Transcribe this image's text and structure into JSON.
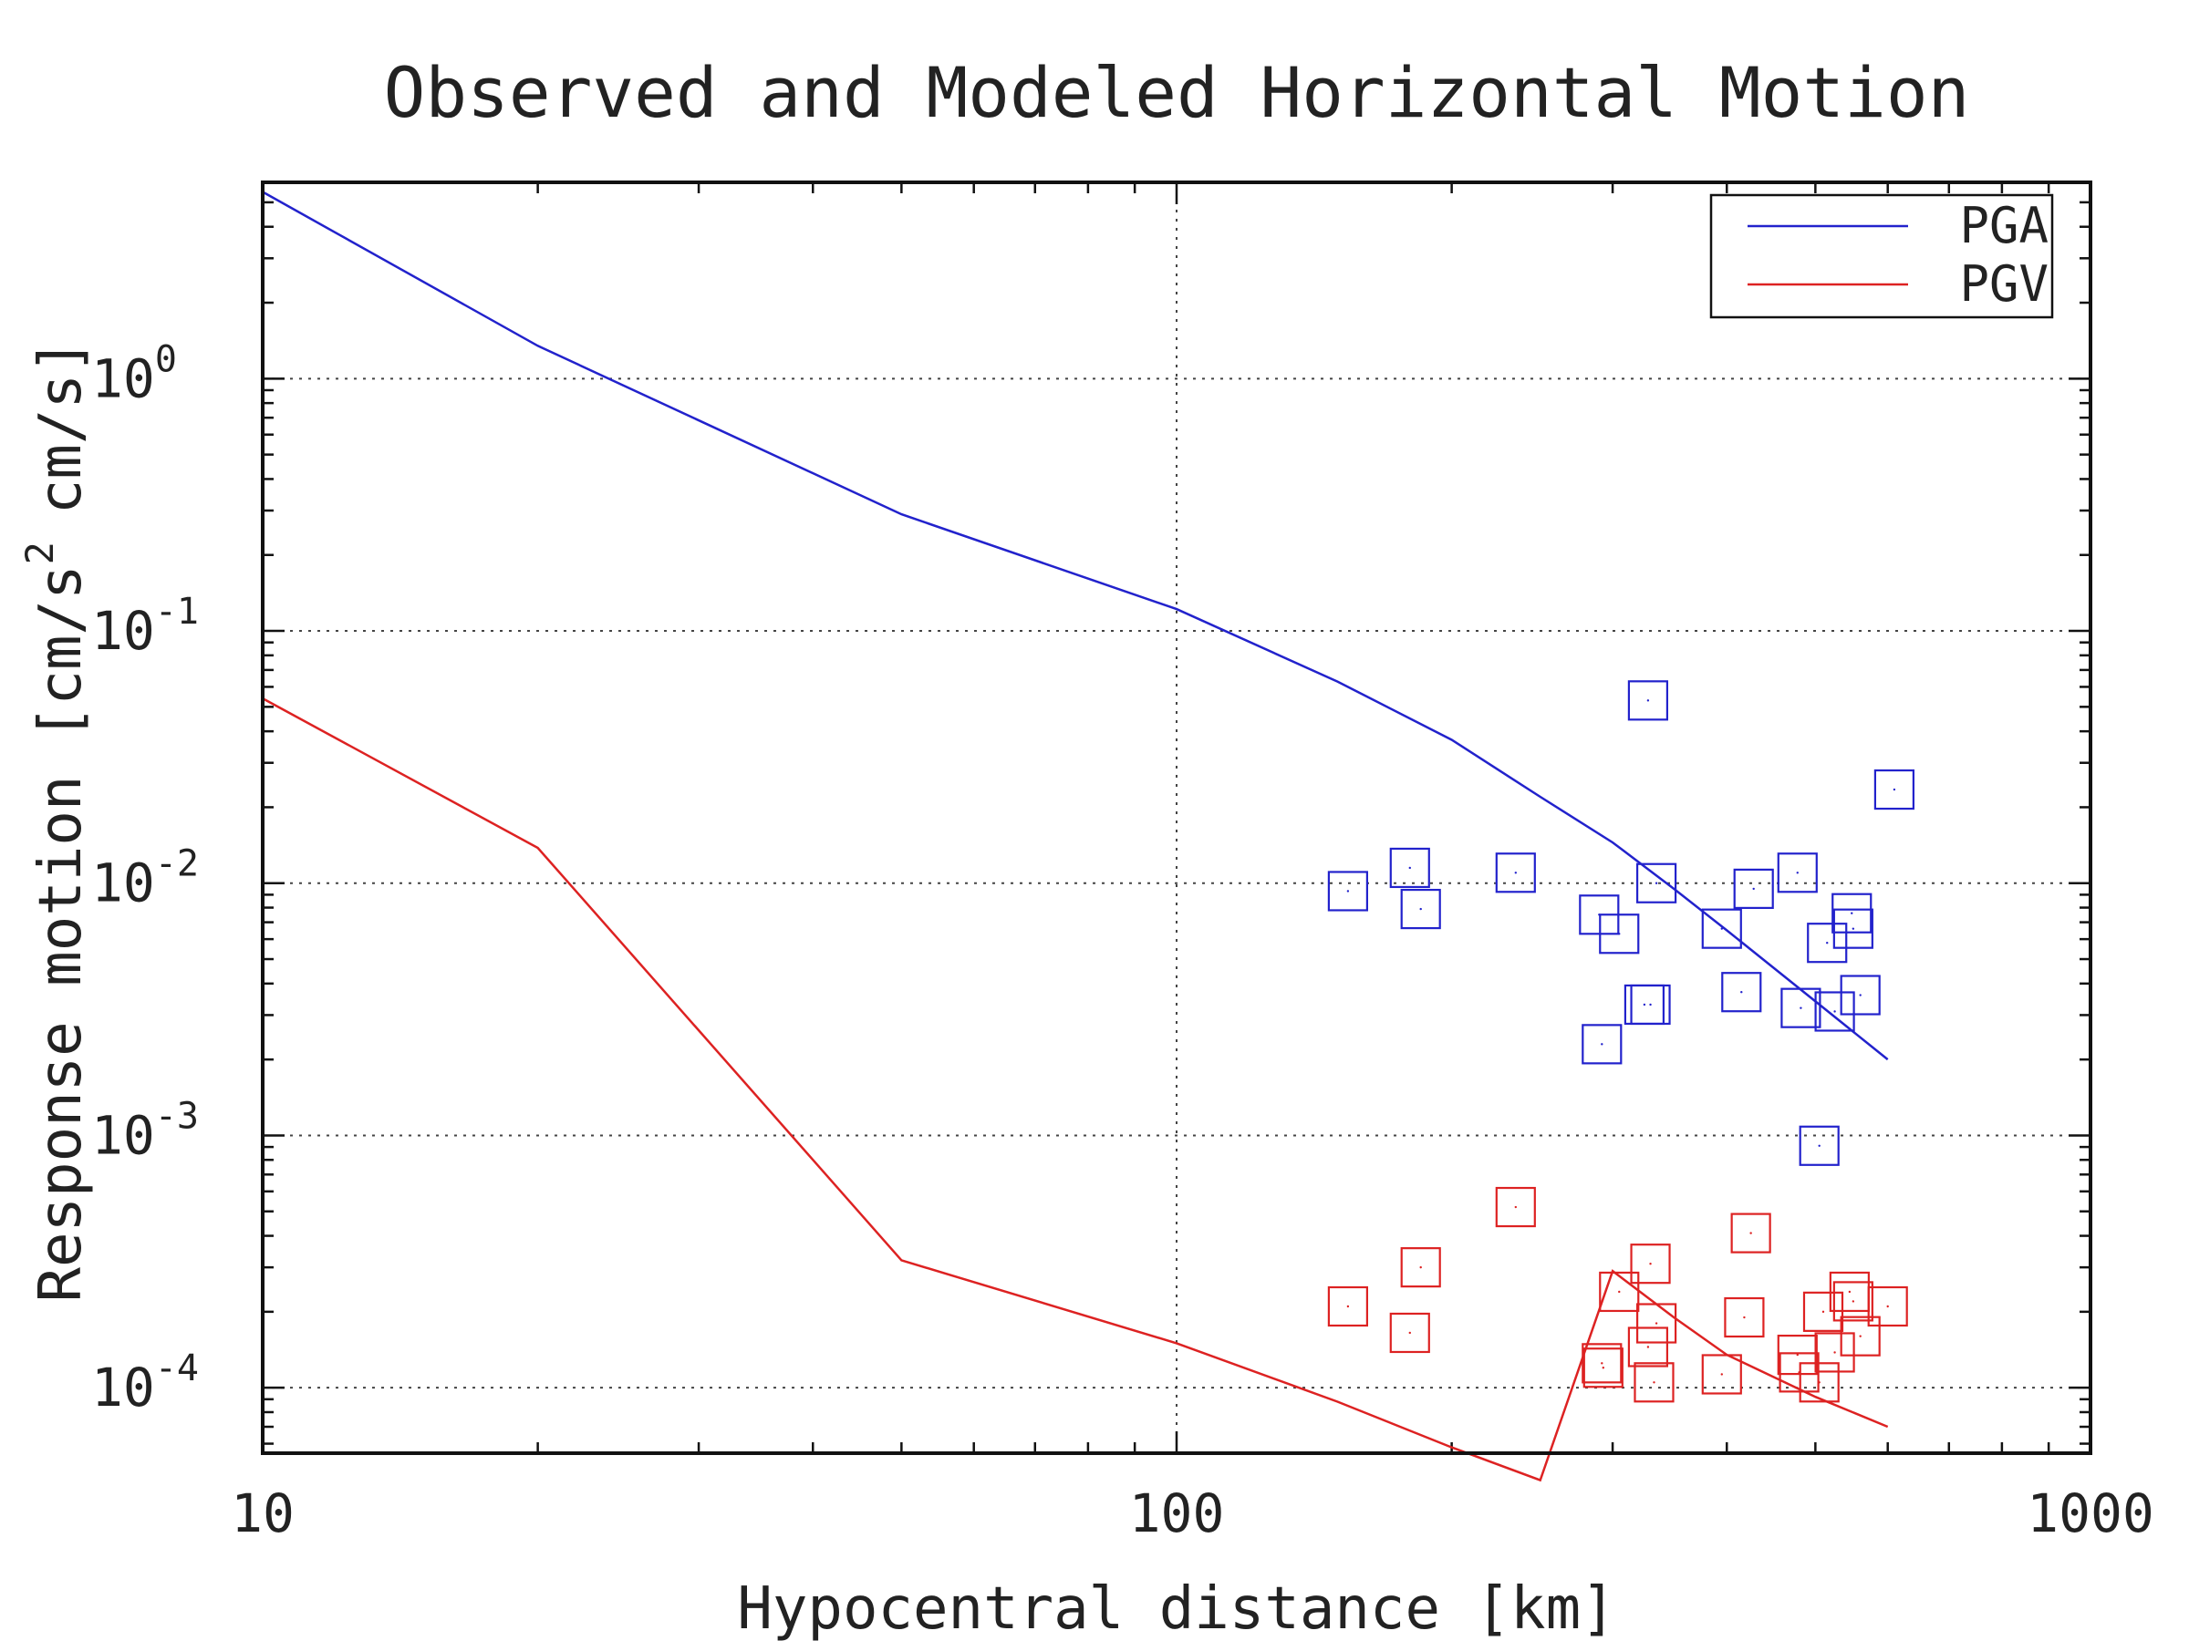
{
  "chart_data": {
    "type": "scatter",
    "title": "Observed and Modeled Horizontal Motion",
    "xlabel": "Hypocentral distance [km]",
    "ylabel": {
      "main": "Response motion [cm/s",
      "sup": "2",
      "tail": "cm/s]"
    },
    "x_scale": "log",
    "y_scale": "log",
    "xlim": [
      10,
      1000
    ],
    "ylim": [
      5.5e-05,
      6
    ],
    "x_ticks": [
      {
        "value": 10,
        "label": "10"
      },
      {
        "value": 100,
        "label": "100"
      },
      {
        "value": 1000,
        "label": "1000"
      }
    ],
    "y_ticks": [
      {
        "value": 0.0001,
        "base": "10",
        "exp": "-4"
      },
      {
        "value": 0.001,
        "base": "10",
        "exp": "-3"
      },
      {
        "value": 0.01,
        "base": "10",
        "exp": "-2"
      },
      {
        "value": 0.1,
        "base": "10",
        "exp": "-1"
      },
      {
        "value": 1,
        "base": "10",
        "exp": "0"
      }
    ],
    "grid": true,
    "legend_position": "top-right",
    "series": [
      {
        "name": "PGA",
        "kind": "line",
        "color": "#2222cc",
        "points": [
          [
            10,
            5.5
          ],
          [
            20,
            1.35
          ],
          [
            50,
            0.29
          ],
          [
            100,
            0.122
          ],
          [
            150,
            0.063
          ],
          [
            200,
            0.037
          ],
          [
            250,
            0.022
          ],
          [
            300,
            0.0145
          ],
          [
            350,
            0.0095
          ],
          [
            400,
            0.0065
          ],
          [
            500,
            0.0034
          ],
          [
            600,
            0.002
          ]
        ]
      },
      {
        "name": "PGV",
        "kind": "line",
        "color": "#dd2222",
        "points": [
          [
            10,
            0.054
          ],
          [
            20,
            0.0138
          ],
          [
            50,
            0.00032
          ],
          [
            100,
            0.00015
          ],
          [
            150,
            8.8e-05
          ],
          [
            200,
            5.8e-05
          ],
          [
            250,
            4.3e-05
          ],
          [
            300,
            0.00029
          ],
          [
            350,
            0.00019
          ],
          [
            400,
            0.000135
          ],
          [
            500,
            9.2e-05
          ],
          [
            600,
            7e-05
          ]
        ]
      },
      {
        "name": "PGA observed",
        "kind": "scatter",
        "marker": "square",
        "color": "#2222cc",
        "points": [
          [
            154,
            0.0093
          ],
          [
            180,
            0.0115
          ],
          [
            185,
            0.0079
          ],
          [
            235,
            0.011
          ],
          [
            290,
            0.0075
          ],
          [
            292,
            0.0023
          ],
          [
            305,
            0.0063
          ],
          [
            325,
            0.0033
          ],
          [
            328,
            0.053
          ],
          [
            330,
            0.0033
          ],
          [
            335,
            0.01
          ],
          [
            395,
            0.0066
          ],
          [
            415,
            0.0037
          ],
          [
            428,
            0.0095
          ],
          [
            478,
            0.011
          ],
          [
            482,
            0.0032
          ],
          [
            505,
            0.00091
          ],
          [
            515,
            0.0058
          ],
          [
            525,
            0.0031
          ],
          [
            548,
            0.0076
          ],
          [
            550,
            0.0066
          ],
          [
            560,
            0.0036
          ],
          [
            610,
            0.0235
          ]
        ]
      },
      {
        "name": "PGV observed",
        "kind": "scatter",
        "marker": "square",
        "color": "#dd2222",
        "points": [
          [
            154,
            0.00021
          ],
          [
            180,
            0.000165
          ],
          [
            185,
            0.0003
          ],
          [
            235,
            0.00052
          ],
          [
            292,
            0.000125
          ],
          [
            293,
            0.00012
          ],
          [
            305,
            0.00024
          ],
          [
            328,
            0.000145
          ],
          [
            330,
            0.00031
          ],
          [
            333,
            0.000105
          ],
          [
            335,
            0.00018
          ],
          [
            395,
            0.000113
          ],
          [
            418,
            0.00019
          ],
          [
            425,
            0.00041
          ],
          [
            478,
            0.000135
          ],
          [
            480,
            0.000115
          ],
          [
            505,
            0.000105
          ],
          [
            510,
            0.0002
          ],
          [
            525,
            0.000138
          ],
          [
            545,
            0.00024
          ],
          [
            550,
            0.00022
          ],
          [
            560,
            0.00016
          ],
          [
            600,
            0.00021
          ]
        ]
      }
    ],
    "legend": [
      {
        "name": "PGA",
        "color": "#2222cc"
      },
      {
        "name": "PGV",
        "color": "#dd2222"
      }
    ]
  }
}
